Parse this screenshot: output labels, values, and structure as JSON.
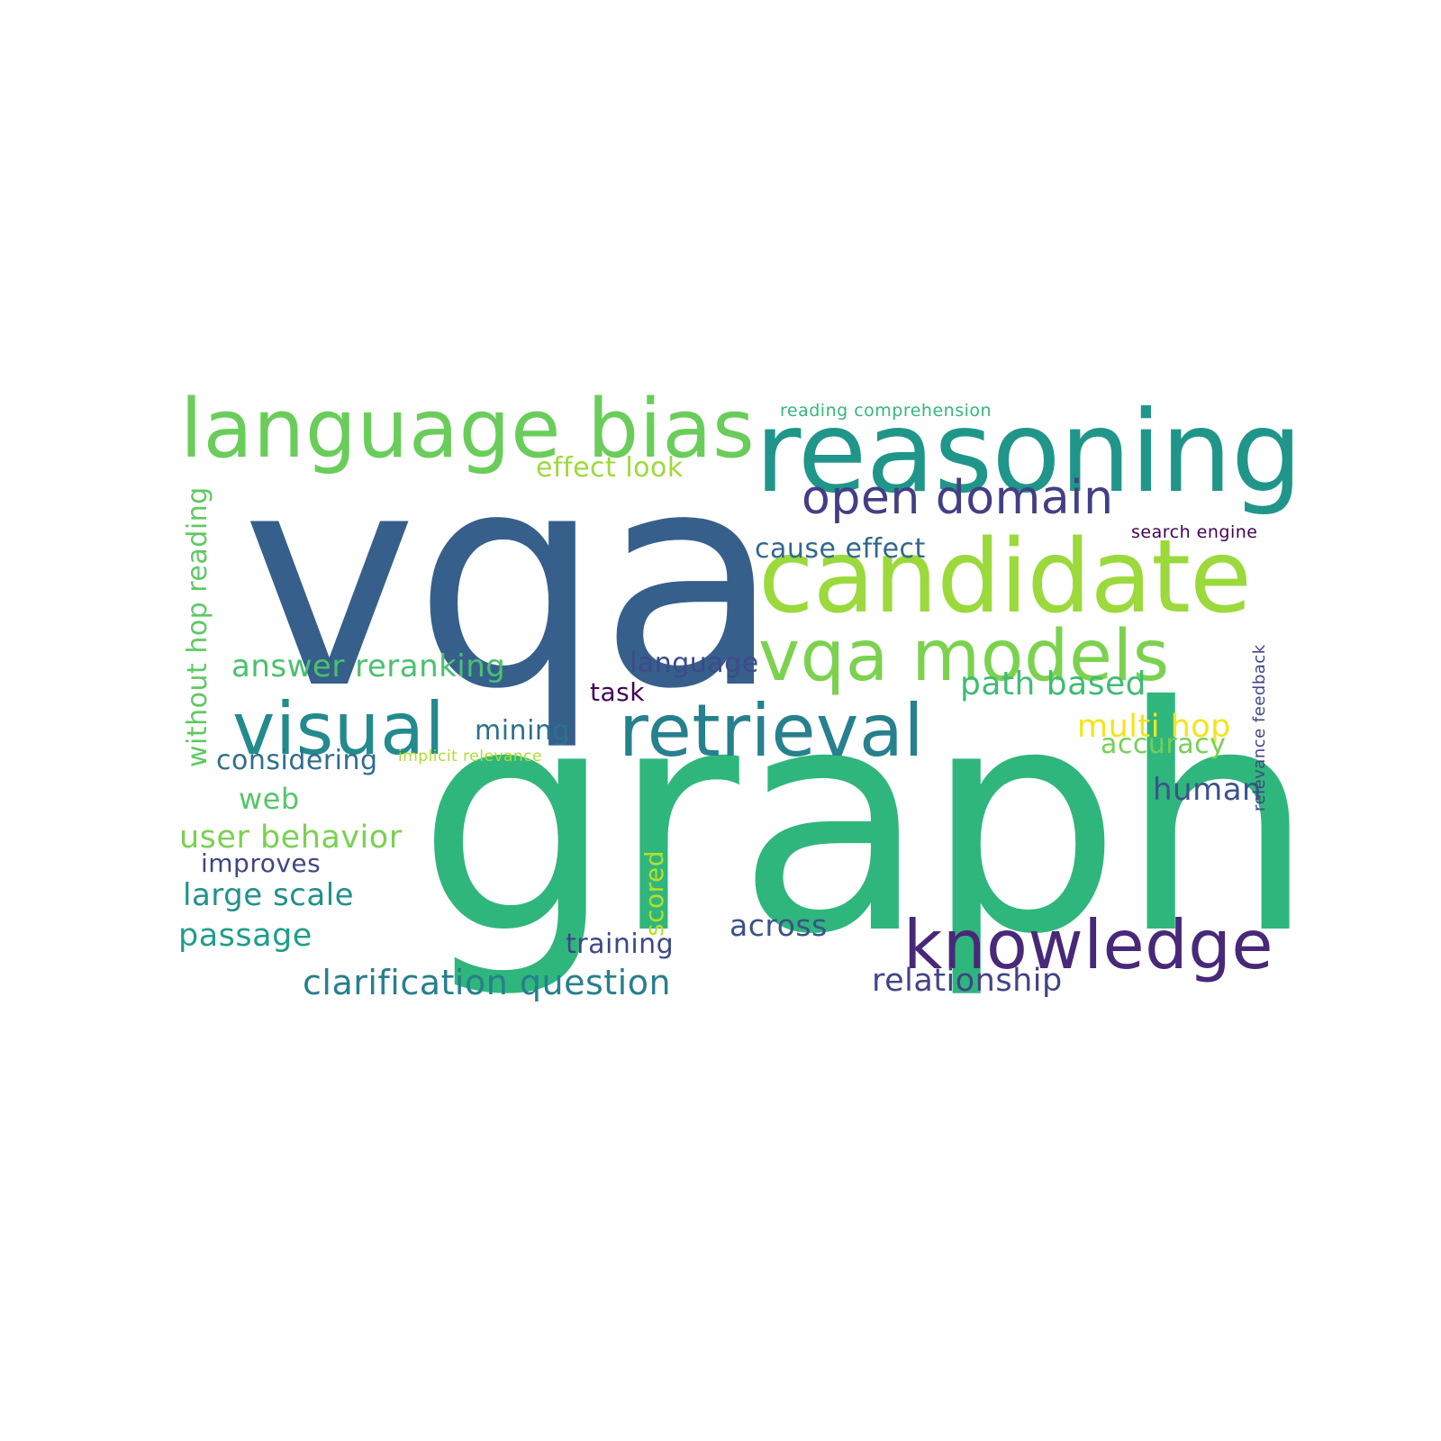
{
  "words": [
    {
      "key": "vqa",
      "text": "vqa",
      "color": "#365f8c"
    },
    {
      "key": "graph",
      "text": "graph",
      "color": "#2fb67c"
    },
    {
      "key": "reasoning",
      "text": "reasoning",
      "color": "#20968a"
    },
    {
      "key": "language_bias",
      "text": "language bias",
      "color": "#6acd5b"
    },
    {
      "key": "candidate",
      "text": "candidate",
      "color": "#9bd93c"
    },
    {
      "key": "vqa_models",
      "text": "vqa models",
      "color": "#7cd24f"
    },
    {
      "key": "open_domain",
      "text": "open domain",
      "color": "#433e85"
    },
    {
      "key": "effect_look",
      "text": "effect look",
      "color": "#9dd93b"
    },
    {
      "key": "reading_comprehension",
      "text": "reading comprehension",
      "color": "#35b779"
    },
    {
      "key": "search_engine",
      "text": "search engine",
      "color": "#440154"
    },
    {
      "key": "cause_effect",
      "text": "cause effect",
      "color": "#31688e"
    },
    {
      "key": "visual",
      "text": "visual",
      "color": "#238a8d"
    },
    {
      "key": "retrieval",
      "text": "retrieval",
      "color": "#27808e"
    },
    {
      "key": "answer_reranking",
      "text": "answer reranking",
      "color": "#4ac16d"
    },
    {
      "key": "language",
      "text": "language",
      "color": "#3e4a89"
    },
    {
      "key": "task",
      "text": "task",
      "color": "#440154"
    },
    {
      "key": "path_based",
      "text": "path based",
      "color": "#3fbc73"
    },
    {
      "key": "multi_hop",
      "text": "multi hop",
      "color": "#f1e51d"
    },
    {
      "key": "accuracy",
      "text": "accuracy",
      "color": "#75d054"
    },
    {
      "key": "mining",
      "text": "mining",
      "color": "#2d708e"
    },
    {
      "key": "considering",
      "text": "considering",
      "color": "#2e6e8e"
    },
    {
      "key": "implicit_relevance",
      "text": "implicit relevance",
      "color": "#addc30"
    },
    {
      "key": "web",
      "text": "web",
      "color": "#56c667"
    },
    {
      "key": "human",
      "text": "human",
      "color": "#3b528b"
    },
    {
      "key": "user_behavior",
      "text": "user behavior",
      "color": "#7ad151"
    },
    {
      "key": "improves",
      "text": "improves",
      "color": "#414487"
    },
    {
      "key": "large_scale",
      "text": "large scale",
      "color": "#21918c"
    },
    {
      "key": "passage",
      "text": "passage",
      "color": "#1f9e89"
    },
    {
      "key": "across",
      "text": "across",
      "color": "#3b528b"
    },
    {
      "key": "training",
      "text": "training",
      "color": "#3f4788"
    },
    {
      "key": "knowledge",
      "text": "knowledge",
      "color": "#482878"
    },
    {
      "key": "clarification_question",
      "text": "clarification question",
      "color": "#277f8e"
    },
    {
      "key": "relationship",
      "text": "relationship",
      "color": "#414487"
    },
    {
      "key": "without_hop_reading",
      "text": "without hop reading",
      "color": "#5ec962"
    },
    {
      "key": "scored",
      "text": "scored",
      "color": "#b5de2b"
    },
    {
      "key": "relevance_feedback",
      "text": "relevance feedback",
      "color": "#404688"
    }
  ]
}
